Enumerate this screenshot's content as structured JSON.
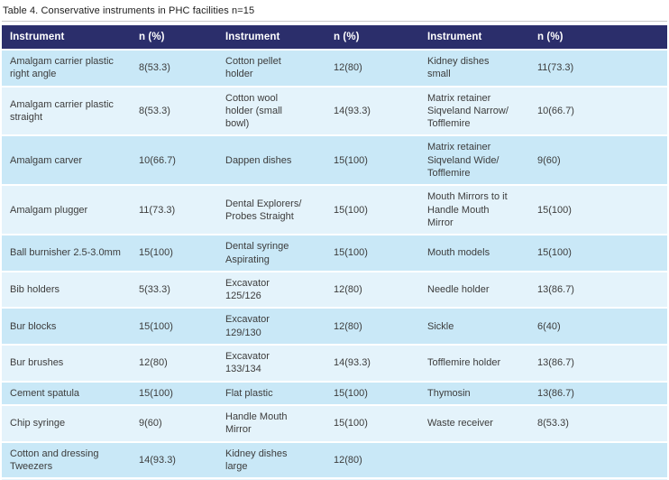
{
  "title": "Table 4. Conservative instruments in PHC facilities n=15",
  "table": {
    "headers": [
      "Instrument",
      "n (%)",
      "Instrument",
      "n (%)",
      "Instrument",
      "n (%)"
    ],
    "rows": [
      [
        "Amalgam carrier plastic right angle",
        "8(53.3)",
        "Cotton pellet holder",
        "12(80)",
        "Kidney dishes small",
        "11(73.3)"
      ],
      [
        "Amalgam carrier plastic straight",
        "8(53.3)",
        "Cotton wool holder (small bowl)",
        "14(93.3)",
        "Matrix retainer Siqveland Narrow/ Tofflemire",
        "10(66.7)"
      ],
      [
        "Amalgam carver",
        "10(66.7)",
        "Dappen dishes",
        "15(100)",
        "Matrix retainer Siqveland Wide/ Tofflemire",
        "9(60)"
      ],
      [
        "Amalgam plugger",
        "11(73.3)",
        "Dental Explorers/ Probes Straight",
        "15(100)",
        "Mouth Mirrors to it Handle Mouth Mirror",
        "15(100)"
      ],
      [
        "Ball burnisher 2.5-3.0mm",
        "15(100)",
        "Dental syringe Aspirating",
        "15(100)",
        "Mouth models",
        "15(100)"
      ],
      [
        "Bib holders",
        "5(33.3)",
        "Excavator 125/126",
        "12(80)",
        "Needle holder",
        "13(86.7)"
      ],
      [
        "Bur blocks",
        "15(100)",
        "Excavator 129/130",
        "12(80)",
        "Sickle",
        "6(40)"
      ],
      [
        "Bur brushes",
        "12(80)",
        "Excavator 133/134",
        "14(93.3)",
        "Tofflemire holder",
        "13(86.7)"
      ],
      [
        "Cement spatula",
        "15(100)",
        "Flat plastic",
        "15(100)",
        "Thymosin",
        "13(86.7)"
      ],
      [
        "Chip syringe",
        "9(60)",
        "Handle Mouth Mirror",
        "15(100)",
        "Waste receiver",
        "8(53.3)"
      ],
      [
        "Cotton and dressing Tweezers",
        "14(93.3)",
        "Kidney dishes large",
        "12(80)",
        "",
        ""
      ]
    ]
  },
  "colors": {
    "header_bg": "#2b2e6b",
    "header_text": "#ffffff",
    "row_odd": "#c9e8f7",
    "row_even": "#e4f3fb",
    "text": "#3c3c3c"
  }
}
